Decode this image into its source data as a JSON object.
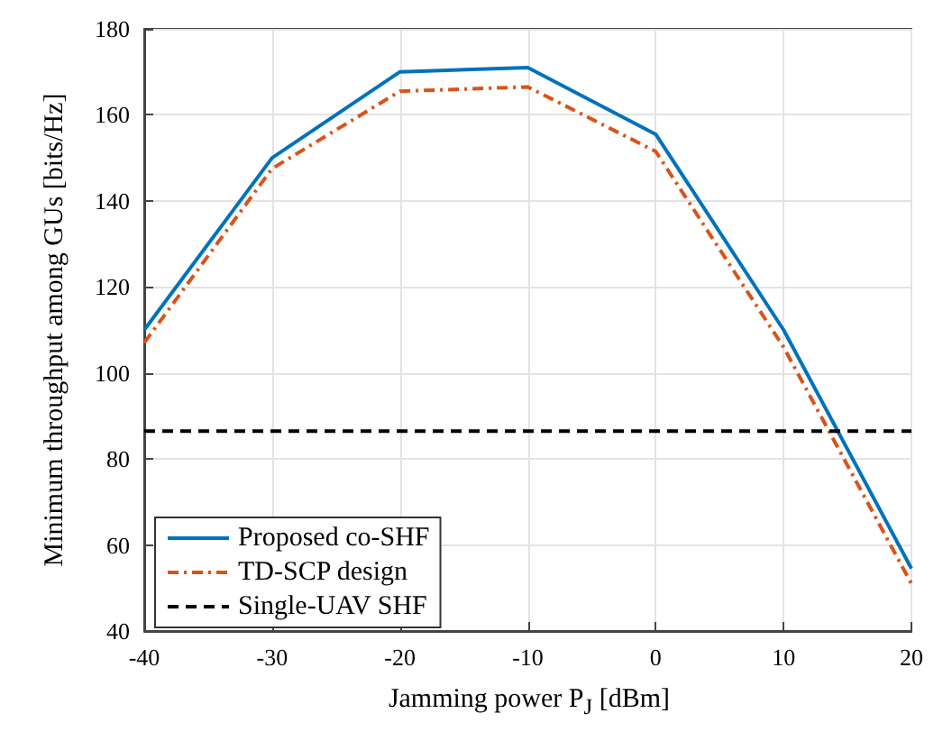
{
  "chart_data": {
    "type": "line",
    "xlabel": "Jamming power P$_{J}$ [dBm]",
    "ylabel": "Minimum throughput among GUs [bits/Hz]",
    "x": [
      -40,
      -30,
      -20,
      -10,
      0,
      10,
      20
    ],
    "series": [
      {
        "name": "Proposed co-SHF",
        "color": "#0072bd",
        "line_style": "solid",
        "values": [
          110,
          150,
          170,
          171,
          155.5,
          110,
          54.5
        ]
      },
      {
        "name": "TD-SCP design",
        "color": "#d95319",
        "line_style": "dashdot",
        "values": [
          107,
          147.5,
          165.5,
          166.5,
          151.5,
          106,
          51
        ]
      },
      {
        "name": "Single-UAV SHF",
        "color": "#000000",
        "line_style": "dashed",
        "x": [
          -40,
          20
        ],
        "values": [
          86.5,
          86.5
        ]
      }
    ],
    "xlim": [
      -40,
      20
    ],
    "xticks": [
      -40,
      -30,
      -20,
      -10,
      0,
      10,
      20
    ],
    "ylim": [
      40,
      180
    ],
    "yticks": [
      40,
      60,
      80,
      100,
      120,
      140,
      160,
      180
    ],
    "grid": true,
    "legend": "bottom left",
    "marker": "none"
  }
}
